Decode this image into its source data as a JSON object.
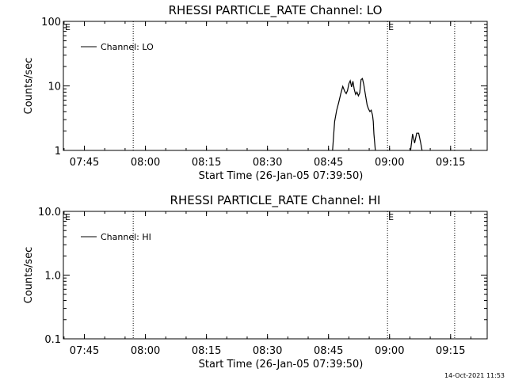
{
  "timestamp": "14-Oct-2021 11:53",
  "chart_data": [
    {
      "type": "line",
      "title": "RHESSI PARTICLE_RATE Channel: LO",
      "xlabel": "Start Time (26-Jan-05 07:39:50)",
      "ylabel": "Counts/sec",
      "yscale": "log",
      "xlim": [
        "07:39:50",
        "09:24:00"
      ],
      "ylim": [
        1,
        100
      ],
      "x_ticks": [
        "07:45",
        "08:00",
        "08:15",
        "08:30",
        "08:45",
        "09:00",
        "09:15"
      ],
      "y_ticks": [
        "1",
        "10",
        "100"
      ],
      "legend": "top-left",
      "series": [
        {
          "name": "Channel: LO",
          "color": "#000000",
          "x": [
            "08:46:00",
            "08:46:30",
            "08:47:00",
            "08:47:30",
            "08:48:00",
            "08:48:30",
            "08:49:00",
            "08:49:20",
            "08:49:40",
            "08:50:00",
            "08:50:20",
            "08:50:40",
            "08:51:00",
            "08:51:20",
            "08:51:40",
            "08:52:00",
            "08:52:20",
            "08:52:40",
            "08:53:00",
            "08:53:20",
            "08:53:40",
            "08:54:00",
            "08:54:30",
            "08:54:50",
            "08:55:10",
            "08:55:30",
            "08:55:50",
            "08:56:00",
            "08:56:10",
            "08:56:30"
          ],
          "y": [
            1,
            2.8,
            4.2,
            5.5,
            7.5,
            9.8,
            8.2,
            7.6,
            8.5,
            10.8,
            12,
            9.6,
            11.8,
            8.8,
            7.4,
            8,
            7,
            7.8,
            12.5,
            13,
            10.5,
            7.8,
            5,
            4.4,
            4,
            4.2,
            3.5,
            2.8,
            1.8,
            1
          ],
          "segments2_x": [
            "09:05:10",
            "09:05:40",
            "09:06:10",
            "09:06:40",
            "09:07:10",
            "09:07:40",
            "09:08:00"
          ],
          "segments2_y": [
            1,
            1.8,
            1.3,
            1.85,
            1.85,
            1.3,
            1
          ]
        }
      ],
      "markers": [
        {
          "time": "07:57:00",
          "label": ""
        },
        {
          "time": "08:59:30",
          "label": "E"
        },
        {
          "time": "09:16:00",
          "label": ""
        }
      ],
      "corner_label": "E"
    },
    {
      "type": "line",
      "title": "RHESSI PARTICLE_RATE Channel: HI",
      "xlabel": "Start Time (26-Jan-05 07:39:50)",
      "ylabel": "Counts/sec",
      "yscale": "log",
      "xlim": [
        "07:39:50",
        "09:24:00"
      ],
      "ylim": [
        0.1,
        10
      ],
      "x_ticks": [
        "07:45",
        "08:00",
        "08:15",
        "08:30",
        "08:45",
        "09:00",
        "09:15"
      ],
      "y_ticks": [
        "0.1",
        "1.0",
        "10.0"
      ],
      "legend": "top-left",
      "series": [
        {
          "name": "Channel: HI",
          "color": "#000000",
          "x": [],
          "y": []
        }
      ],
      "markers": [
        {
          "time": "07:57:00",
          "label": ""
        },
        {
          "time": "08:59:30",
          "label": "E"
        },
        {
          "time": "09:16:00",
          "label": ""
        }
      ],
      "corner_label": "E"
    }
  ]
}
